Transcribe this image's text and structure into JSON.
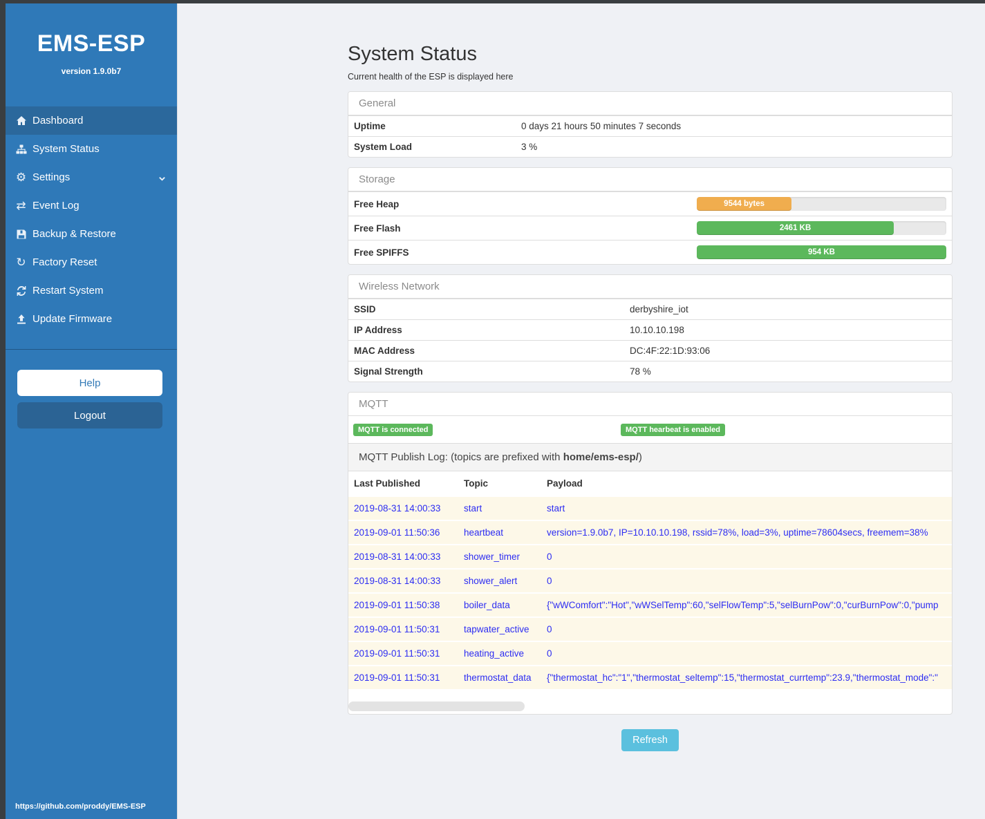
{
  "app": {
    "title": "EMS-ESP",
    "version": "version 1.9.0b7",
    "footer_link": "https://github.com/proddy/EMS-ESP"
  },
  "colors": {
    "sidebar_blue": "#2f79b8",
    "sidebar_active_blue": "#2b689c",
    "badge_green": "#5cb85c",
    "bar_orange": "#f0ad4e",
    "bar_green": "#5cb85c",
    "refresh_blue": "#5bc0de",
    "log_link_blue": "#2d2df2",
    "log_row_bg": "#fdf8e8"
  },
  "icons": {
    "gear_glyph": "⚙",
    "exchange_glyph": "⇄",
    "redo_glyph": "↻"
  },
  "sidebar": {
    "items": [
      {
        "label": "Dashboard",
        "icon": "home-icon",
        "active": true
      },
      {
        "label": "System Status",
        "icon": "sitemap-icon",
        "active": false
      },
      {
        "label": "Settings",
        "icon": "gear-icon",
        "active": false,
        "chevron": true
      },
      {
        "label": "Event Log",
        "icon": "exchange-icon",
        "active": false
      },
      {
        "label": "Backup & Restore",
        "icon": "save-icon",
        "active": false
      },
      {
        "label": "Factory Reset",
        "icon": "redo-icon",
        "active": false
      },
      {
        "label": "Restart System",
        "icon": "sync-icon",
        "active": false
      },
      {
        "label": "Update Firmware",
        "icon": "upload-icon",
        "active": false
      }
    ],
    "help_label": "Help",
    "logout_label": "Logout"
  },
  "page": {
    "title": "System Status",
    "subtitle": "Current health of the ESP is displayed here"
  },
  "general": {
    "header": "General",
    "rows": [
      {
        "label": "Uptime",
        "value": "0 days 21 hours 50 minutes 7 seconds"
      },
      {
        "label": "System Load",
        "value": "3 %"
      }
    ]
  },
  "storage": {
    "header": "Storage",
    "rows": [
      {
        "label": "Free Heap",
        "value": "9544 bytes",
        "percent": 38,
        "color": "#f0ad4e"
      },
      {
        "label": "Free Flash",
        "value": "2461 KB",
        "percent": 79,
        "color": "#5cb85c"
      },
      {
        "label": "Free SPIFFS",
        "value": "954 KB",
        "percent": 100,
        "color": "#5cb85c"
      }
    ]
  },
  "wireless": {
    "header": "Wireless Network",
    "rows": [
      {
        "label": "SSID",
        "value": "derbyshire_iot"
      },
      {
        "label": "IP Address",
        "value": "10.10.10.198"
      },
      {
        "label": "MAC Address",
        "value": "DC:4F:22:1D:93:06"
      },
      {
        "label": "Signal Strength",
        "value": "78 %"
      }
    ]
  },
  "mqtt": {
    "header": "MQTT",
    "badges": [
      "MQTT is connected",
      "MQTT hearbeat is enabled"
    ],
    "publish_log_text": "MQTT Publish Log: (topics are prefixed with ",
    "publish_log_bold": "home/ems-esp/",
    "publish_log_suffix": ")",
    "table": {
      "headers": [
        "Last Published",
        "Topic",
        "Payload"
      ],
      "rows": [
        {
          "published": "2019-08-31 14:00:33",
          "topic": "start",
          "payload": "start"
        },
        {
          "published": "2019-09-01 11:50:36",
          "topic": "heartbeat",
          "payload": "version=1.9.0b7, IP=10.10.10.198, rssid=78%, load=3%, uptime=78604secs, freemem=38%"
        },
        {
          "published": "2019-08-31 14:00:33",
          "topic": "shower_timer",
          "payload": "0"
        },
        {
          "published": "2019-08-31 14:00:33",
          "topic": "shower_alert",
          "payload": "0"
        },
        {
          "published": "2019-09-01 11:50:38",
          "topic": "boiler_data",
          "payload": "{\"wWComfort\":\"Hot\",\"wWSelTemp\":60,\"selFlowTemp\":5,\"selBurnPow\":0,\"curBurnPow\":0,\"pump"
        },
        {
          "published": "2019-09-01 11:50:31",
          "topic": "tapwater_active",
          "payload": "0"
        },
        {
          "published": "2019-09-01 11:50:31",
          "topic": "heating_active",
          "payload": "0"
        },
        {
          "published": "2019-09-01 11:50:31",
          "topic": "thermostat_data",
          "payload": "{\"thermostat_hc\":\"1\",\"thermostat_seltemp\":15,\"thermostat_currtemp\":23.9,\"thermostat_mode\":\""
        }
      ]
    }
  },
  "refresh_label": "Refresh"
}
